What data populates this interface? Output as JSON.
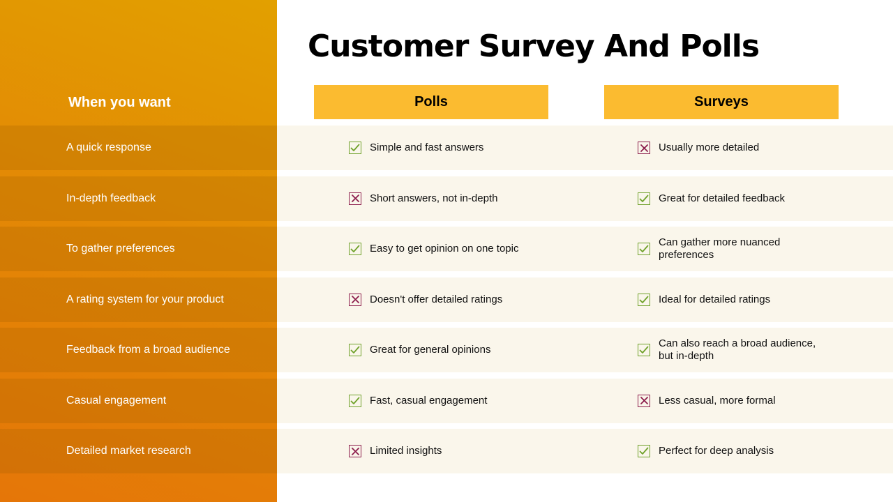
{
  "slide": {
    "title": "Customer Survey And Polls",
    "row_header": "When you want",
    "columns": [
      "Polls",
      "Surveys"
    ]
  },
  "colors": {
    "accent_orange": "#e38a05",
    "header_yellow": "#fbbb30",
    "row_background": "#faf6eb",
    "check_green": "#6fa12a",
    "cross_maroon": "#8c1d4c"
  },
  "rows": [
    {
      "label": "A quick response",
      "polls": {
        "icon": "check-icon",
        "text": "Simple and fast answers"
      },
      "surveys": {
        "icon": "cross-icon",
        "text": "Usually more detailed"
      }
    },
    {
      "label": "In-depth feedback",
      "polls": {
        "icon": "cross-icon",
        "text": "Short answers, not in-depth"
      },
      "surveys": {
        "icon": "check-icon",
        "text": "Great for detailed feedback"
      }
    },
    {
      "label": "To gather preferences",
      "polls": {
        "icon": "check-icon",
        "text": "Easy to get opinion on one topic"
      },
      "surveys": {
        "icon": "check-icon",
        "text": "Can gather more nuanced preferences"
      }
    },
    {
      "label": "A rating system for your product",
      "polls": {
        "icon": "cross-icon",
        "text": "Doesn't offer detailed ratings"
      },
      "surveys": {
        "icon": "check-icon",
        "text": "Ideal for detailed ratings"
      }
    },
    {
      "label": "Feedback from a broad audience",
      "polls": {
        "icon": "check-icon",
        "text": "Great for general opinions"
      },
      "surveys": {
        "icon": "check-icon",
        "text": "Can also reach a broad audience, but in-depth"
      }
    },
    {
      "label": "Casual engagement",
      "polls": {
        "icon": "check-icon",
        "text": "Fast, casual engagement"
      },
      "surveys": {
        "icon": "cross-icon",
        "text": "Less casual, more formal"
      }
    },
    {
      "label": "Detailed market research",
      "polls": {
        "icon": "cross-icon",
        "text": "Limited insights"
      },
      "surveys": {
        "icon": "check-icon",
        "text": "Perfect for deep analysis"
      }
    }
  ]
}
